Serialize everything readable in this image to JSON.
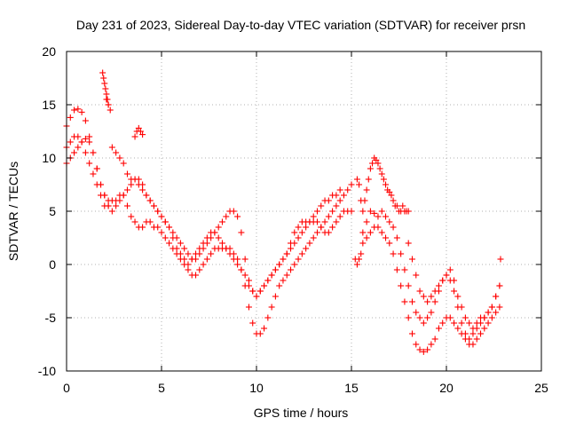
{
  "chart_data": {
    "type": "scatter",
    "title": "Day 231 of 2023, Sidereal Day-to-day VTEC variation (SDTVAR) for receiver prsn",
    "xlabel": "GPS time / hours",
    "ylabel": "SDTVAR / TECUs",
    "xlim": [
      0,
      25
    ],
    "ylim": [
      -10,
      20
    ],
    "xticks": [
      0,
      5,
      10,
      15,
      20,
      25
    ],
    "yticks": [
      -10,
      -5,
      0,
      5,
      10,
      15,
      20
    ],
    "grid": true,
    "marker": "plus",
    "color": "#ff0000",
    "series": [
      {
        "x": [
          0.0,
          0.2,
          0.4,
          0.6,
          0.8,
          1.0,
          1.2,
          1.4,
          1.6,
          1.8,
          2.0,
          2.2,
          2.4,
          2.6,
          2.8,
          3.0,
          3.2,
          3.4,
          3.6,
          3.8,
          4.0,
          4.2,
          4.4,
          4.6,
          4.8,
          5.0,
          5.2,
          5.4,
          5.6,
          5.8,
          6.0,
          6.2,
          6.4,
          6.6,
          6.8,
          7.0,
          7.2,
          7.4,
          7.6,
          7.8,
          8.0,
          8.2,
          8.4,
          8.6,
          8.8,
          9.0,
          9.2,
          9.4,
          9.6,
          9.8,
          10.0,
          10.2,
          10.4,
          10.6,
          10.8,
          11.0,
          11.2,
          11.4,
          11.6,
          11.8,
          12.0,
          12.2,
          12.4,
          12.6,
          12.8,
          13.0,
          13.2,
          13.4,
          13.6,
          13.8,
          14.0,
          14.2,
          14.4,
          14.6,
          14.8,
          15.0
        ],
        "y": [
          11.0,
          11.5,
          12.0,
          12.0,
          11.5,
          10.5,
          9.5,
          8.5,
          7.5,
          6.5,
          5.5,
          5.5,
          6.0,
          6.0,
          6.5,
          6.5,
          5.5,
          4.5,
          4.0,
          3.5,
          3.5,
          4.0,
          4.0,
          3.5,
          3.5,
          3.0,
          2.5,
          2.0,
          1.5,
          1.0,
          0.5,
          0.0,
          -0.5,
          -1.0,
          -1.0,
          -0.5,
          0.0,
          0.5,
          1.0,
          1.5,
          1.5,
          1.5,
          1.5,
          1.5,
          1.0,
          0.5,
          -0.5,
          -2.0,
          -4.0,
          -5.5,
          -6.5,
          -6.5,
          -6.0,
          -5.0,
          -4.0,
          -3.0,
          -2.0,
          -1.5,
          -1.0,
          -0.5,
          0.0,
          0.5,
          1.0,
          1.5,
          2.0,
          2.5,
          3.0,
          3.5,
          4.0,
          4.5,
          5.0,
          5.5,
          6.0,
          6.5,
          7.0,
          7.5
        ]
      },
      {
        "x": [
          0.0,
          0.2,
          0.4,
          0.6,
          0.8,
          1.0,
          1.2,
          1.4,
          1.6,
          1.8,
          2.0,
          2.2,
          2.4,
          2.6,
          2.8,
          3.0,
          3.2,
          3.4,
          3.6,
          3.8,
          4.0,
          4.2,
          4.4,
          4.6,
          4.8,
          5.0,
          5.2,
          5.4,
          5.6,
          5.8,
          6.0,
          6.2,
          6.4,
          6.6,
          6.8,
          7.0,
          7.2,
          7.4,
          7.6,
          7.8,
          8.0,
          8.2,
          8.4,
          8.6,
          8.8,
          9.0,
          9.2,
          9.4,
          9.6,
          9.8,
          10.0,
          10.2,
          10.4,
          10.6,
          10.8,
          11.0,
          11.2,
          11.4,
          11.6,
          11.8,
          12.0,
          12.2,
          12.4,
          12.6,
          12.8,
          13.0,
          13.2,
          13.4,
          13.6,
          13.8,
          14.0,
          14.2,
          14.4
        ],
        "y": [
          13.0,
          13.8,
          14.5,
          14.6,
          14.3,
          13.5,
          12.0,
          10.5,
          9.0,
          7.5,
          6.5,
          6.0,
          11.0,
          10.5,
          10.0,
          9.5,
          8.5,
          8.0,
          8.0,
          7.5,
          7.0,
          6.5,
          6.0,
          5.5,
          5.0,
          4.5,
          4.0,
          3.5,
          3.0,
          2.5,
          2.0,
          1.5,
          1.0,
          0.5,
          0.5,
          1.0,
          1.5,
          2.0,
          2.5,
          3.0,
          3.5,
          4.0,
          4.5,
          5.0,
          5.0,
          4.5,
          3.0,
          0.5,
          -1.5,
          -2.5,
          -3.0,
          -2.5,
          -2.0,
          -1.5,
          -1.0,
          -0.5,
          0.0,
          0.5,
          1.0,
          2.0,
          3.0,
          3.5,
          4.0,
          4.0,
          4.0,
          4.5,
          5.0,
          5.5,
          6.0,
          6.0,
          6.5,
          6.5,
          7.0
        ]
      },
      {
        "x": [
          0.0,
          0.2,
          0.4,
          0.6,
          0.8,
          1.0,
          1.2,
          1.4,
          1.6,
          1.8,
          2.0,
          2.2,
          2.4,
          2.6,
          2.8,
          3.0,
          3.2,
          3.4,
          3.6,
          3.8,
          4.0,
          4.2,
          4.4,
          4.6,
          4.8,
          5.0,
          5.2,
          5.4,
          5.6,
          5.8,
          6.0,
          6.2,
          6.4,
          6.6,
          6.8,
          7.0,
          7.2,
          7.4,
          7.6,
          7.8,
          8.0,
          8.2,
          8.4,
          8.6,
          8.8,
          9.0,
          9.2,
          9.4,
          9.6,
          9.8,
          10.0,
          10.2,
          10.4,
          10.6,
          10.8,
          11.0,
          11.2,
          11.4,
          11.6,
          11.8,
          12.0,
          12.2,
          12.4,
          12.6,
          12.8,
          13.0,
          13.2,
          13.4,
          13.6,
          13.8,
          14.0,
          14.2,
          14.4,
          14.6,
          14.8,
          15.0
        ],
        "y": [
          9.5,
          10.0,
          10.5,
          11.0,
          11.5,
          11.8,
          11.5,
          10.5,
          9.0,
          7.5,
          6.5,
          5.5,
          5.0,
          5.5,
          6.0,
          6.5,
          7.0,
          7.5,
          8.0,
          8.0,
          7.5,
          6.5,
          6.0,
          5.5,
          5.0,
          4.5,
          4.0,
          3.5,
          2.5,
          1.5,
          1.0,
          0.5,
          0.0,
          0.5,
          1.0,
          1.5,
          2.0,
          2.5,
          3.0,
          3.0,
          2.5,
          2.0,
          1.5,
          1.0,
          0.5,
          0.0,
          -0.5,
          -1.0,
          -2.0,
          -2.5,
          -3.0,
          -2.5,
          -2.0,
          -1.5,
          -1.0,
          -0.5,
          0.0,
          0.5,
          1.0,
          1.5,
          2.0,
          2.5,
          3.0,
          3.5,
          4.0,
          4.0,
          4.0,
          3.5,
          3.0,
          3.0,
          3.5,
          4.0,
          4.5,
          5.0,
          5.0,
          5.0
        ]
      },
      {
        "x": [
          1.9,
          1.95,
          2.0,
          2.05,
          2.1,
          2.15,
          2.2
        ],
        "y": [
          18.0,
          17.5,
          17.0,
          16.5,
          16.0,
          15.5,
          15.0
        ]
      },
      {
        "x": [
          2.1,
          2.2,
          2.3,
          3.6,
          3.7,
          3.8,
          3.9,
          4.0
        ],
        "y": [
          15.5,
          15.0,
          14.5,
          12.0,
          12.5,
          12.8,
          12.5,
          12.2
        ]
      },
      {
        "x": [
          15.3,
          15.4,
          15.5,
          15.6,
          15.7,
          15.8,
          15.9,
          16.0,
          16.1,
          16.2,
          16.3,
          16.4,
          16.5,
          16.6,
          16.7,
          16.8,
          16.9,
          17.0,
          17.1,
          17.2,
          17.3,
          17.4,
          17.5,
          17.6,
          17.7,
          17.8,
          17.9,
          18.0
        ],
        "y": [
          8.0,
          7.5,
          6.0,
          5.0,
          6.0,
          7.0,
          8.0,
          9.0,
          9.5,
          10.0,
          9.8,
          9.5,
          9.0,
          8.5,
          8.0,
          7.5,
          7.0,
          6.8,
          6.5,
          6.0,
          5.5,
          5.5,
          5.0,
          5.0,
          5.5,
          5.0,
          5.0,
          5.0
        ]
      },
      {
        "x": [
          15.2,
          15.3,
          15.4,
          15.5,
          15.6,
          15.8,
          16.0,
          16.2,
          16.4,
          16.6,
          16.8,
          17.0,
          17.2,
          17.4,
          17.6,
          17.8,
          18.0,
          18.2,
          18.4,
          18.6,
          18.8,
          19.0,
          19.2,
          19.4,
          19.6,
          19.8,
          20.0,
          20.2,
          20.4,
          20.6,
          20.8,
          21.0,
          21.2,
          21.4,
          21.6,
          21.8,
          22.0,
          22.2,
          22.4,
          22.6,
          22.8
        ],
        "y": [
          0.5,
          0.0,
          0.5,
          1.0,
          3.0,
          4.0,
          5.0,
          4.8,
          4.5,
          5.0,
          4.5,
          4.0,
          3.5,
          2.5,
          1.0,
          -0.5,
          -2.0,
          -3.5,
          -4.5,
          -5.0,
          -5.5,
          -5.0,
          -4.5,
          -3.5,
          -2.5,
          -1.5,
          -1.0,
          -1.5,
          -2.5,
          -4.0,
          -5.5,
          -6.5,
          -7.0,
          -6.5,
          -6.0,
          -5.5,
          -5.0,
          -4.5,
          -4.0,
          -3.0,
          -2.0
        ]
      },
      {
        "x": [
          15.6,
          15.8,
          16.0,
          16.2,
          16.4,
          16.6,
          16.8,
          17.0,
          17.2,
          17.4,
          17.6,
          17.8,
          18.0,
          18.2,
          18.4,
          18.6,
          18.8,
          19.0,
          19.2,
          19.4,
          19.6,
          19.8,
          20.0,
          20.2,
          20.4,
          20.6,
          20.8,
          21.0,
          21.2,
          21.4,
          21.6,
          21.8,
          22.0,
          22.2,
          22.4,
          22.6,
          22.8
        ],
        "y": [
          2.0,
          2.5,
          3.0,
          3.5,
          3.5,
          3.0,
          2.5,
          2.0,
          1.0,
          -0.5,
          -2.0,
          -3.5,
          -5.0,
          -6.5,
          -7.5,
          -8.0,
          -8.2,
          -8.0,
          -7.5,
          -7.0,
          -6.0,
          -5.5,
          -5.0,
          -5.0,
          -5.5,
          -6.0,
          -6.5,
          -7.0,
          -7.5,
          -7.5,
          -7.0,
          -6.5,
          -6.0,
          -5.5,
          -5.0,
          -4.5,
          -4.0
        ]
      },
      {
        "x": [
          18.0,
          18.2,
          18.4,
          18.6,
          18.8,
          19.0,
          19.2,
          19.4,
          19.6,
          19.8,
          20.0,
          20.2,
          20.4,
          20.6,
          20.8,
          21.0,
          21.2,
          21.4,
          21.6,
          21.8,
          22.0,
          22.2,
          22.4,
          22.6,
          22.8
        ],
        "y": [
          2.0,
          0.5,
          -1.0,
          -2.5,
          -3.0,
          -3.5,
          -3.0,
          -2.5,
          -2.0,
          -1.5,
          -1.0,
          -0.5,
          -1.5,
          -3.0,
          -4.0,
          -5.0,
          -5.5,
          -6.0,
          -5.5,
          -5.0,
          -5.0,
          -4.5,
          -4.0,
          -3.0,
          -2.0
        ]
      },
      {
        "x": [
          22.85
        ],
        "y": [
          0.5
        ]
      }
    ]
  }
}
